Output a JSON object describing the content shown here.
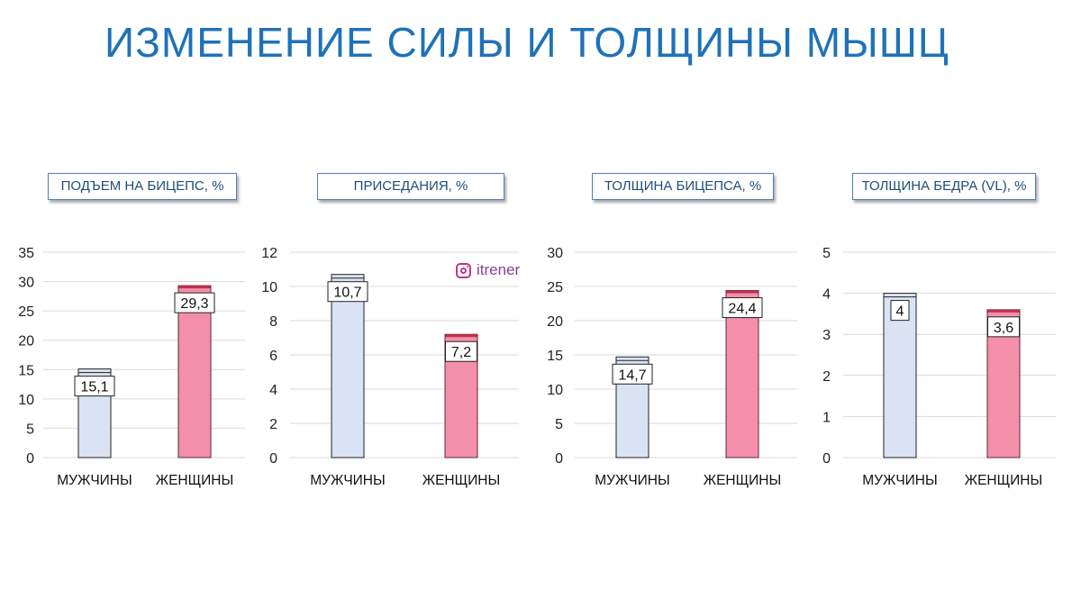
{
  "page": {
    "title": "ИЗМЕНЕНИЕ СИЛЫ И ТОЛЩИНЫ МЫШЦ",
    "watermark": "itrener"
  },
  "colors": {
    "title": "#1f72b8",
    "men_bar": "#dae3f3",
    "women_bar": "#f48fab",
    "women_bar_top": "#c0304f",
    "grid": "#d9d9d9",
    "label_border": "#4f81bd"
  },
  "chart_data": [
    {
      "type": "bar",
      "title": "ПОДЪЕМ НА БИЦЕПС, %",
      "categories": [
        "МУЖЧИНЫ",
        "ЖЕНЩИНЫ"
      ],
      "values": [
        15.1,
        29.3
      ],
      "value_labels": [
        "15,1",
        "29,3"
      ],
      "ylim": [
        0,
        35
      ],
      "yticks": [
        0,
        5,
        10,
        15,
        20,
        25,
        30,
        35
      ],
      "grid": true
    },
    {
      "type": "bar",
      "title": "ПРИСЕДАНИЯ, %",
      "categories": [
        "МУЖЧИНЫ",
        "ЖЕНЩИНЫ"
      ],
      "values": [
        10.7,
        7.2
      ],
      "value_labels": [
        "10,7",
        "7,2"
      ],
      "ylim": [
        0,
        12
      ],
      "yticks": [
        0,
        2,
        4,
        6,
        8,
        10,
        12
      ],
      "grid": true
    },
    {
      "type": "bar",
      "title": "ТОЛЩИНА БИЦЕПСА, %",
      "categories": [
        "МУЖЧИНЫ",
        "ЖЕНЩИНЫ"
      ],
      "values": [
        14.7,
        24.4
      ],
      "value_labels": [
        "14,7",
        "24,4"
      ],
      "ylim": [
        0,
        30
      ],
      "yticks": [
        0,
        5,
        10,
        15,
        20,
        25,
        30
      ],
      "grid": true
    },
    {
      "type": "bar",
      "title": "ТОЛЩИНА БЕДРА (VL), %",
      "categories": [
        "МУЖЧИНЫ",
        "ЖЕНЩИНЫ"
      ],
      "values": [
        4,
        3.6
      ],
      "value_labels": [
        "4",
        "3,6"
      ],
      "ylim": [
        0,
        5
      ],
      "yticks": [
        0,
        1,
        2,
        3,
        4,
        5
      ],
      "grid": true
    }
  ]
}
